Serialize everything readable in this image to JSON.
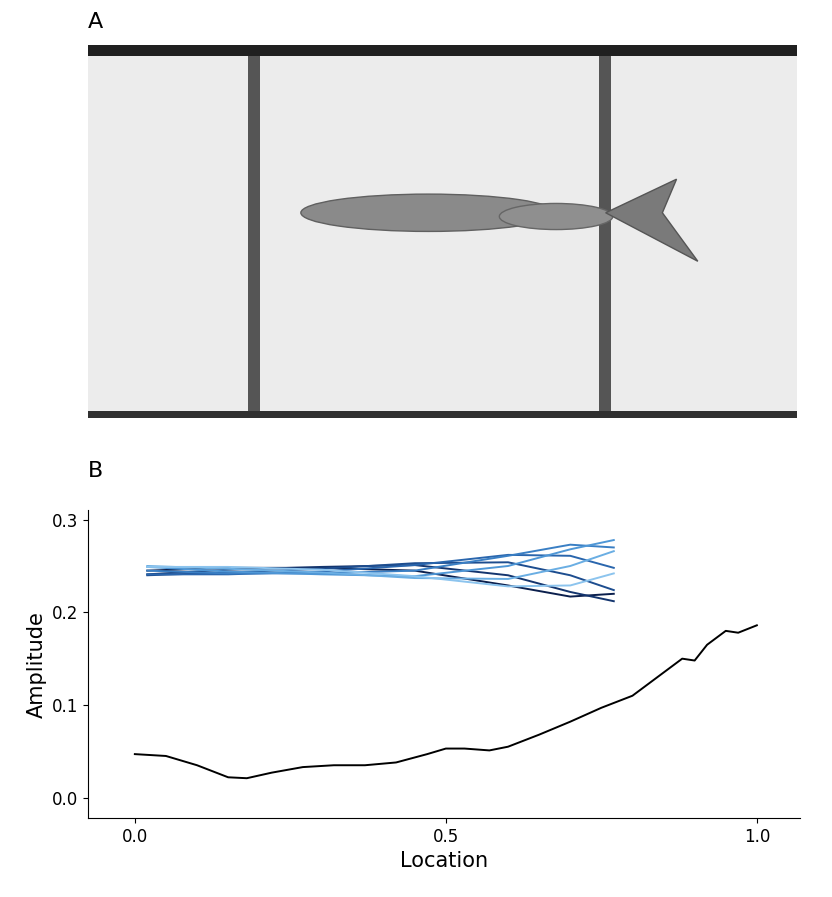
{
  "image": {
    "label": "A"
  },
  "chart_data": {
    "type": "line",
    "title": "B",
    "x_label": "Location",
    "y_label": "Amplitude",
    "xlim": [
      -0.075,
      1.07
    ],
    "ylim": [
      -0.022,
      0.31
    ],
    "xticks": [
      0.0,
      0.5,
      1.0
    ],
    "yticks": [
      0.0,
      0.1,
      0.2,
      0.3
    ],
    "grid": false,
    "series": [
      {
        "color": "#000000",
        "x": [
          0.0,
          0.05,
          0.1,
          0.15,
          0.18,
          0.22,
          0.27,
          0.32,
          0.37,
          0.42,
          0.47,
          0.5,
          0.53,
          0.57,
          0.6,
          0.65,
          0.7,
          0.75,
          0.8,
          0.85,
          0.88,
          0.9,
          0.92,
          0.95,
          0.97,
          1.0
        ],
        "values": [
          0.047,
          0.045,
          0.035,
          0.022,
          0.021,
          0.027,
          0.033,
          0.035,
          0.035,
          0.038,
          0.047,
          0.053,
          0.053,
          0.051,
          0.055,
          0.068,
          0.082,
          0.097,
          0.11,
          0.135,
          0.15,
          0.148,
          0.165,
          0.18,
          0.178,
          0.186
        ]
      },
      {
        "color": "#0b1f4d",
        "x": [
          0.02,
          0.15,
          0.3,
          0.45,
          0.6,
          0.7,
          0.77
        ],
        "values": [
          0.245,
          0.248,
          0.248,
          0.245,
          0.229,
          0.217,
          0.22
        ]
      },
      {
        "color": "#14356e",
        "x": [
          0.02,
          0.15,
          0.3,
          0.45,
          0.6,
          0.7,
          0.77
        ],
        "values": [
          0.241,
          0.246,
          0.249,
          0.251,
          0.24,
          0.222,
          0.212
        ]
      },
      {
        "color": "#1d4d8f",
        "x": [
          0.02,
          0.15,
          0.3,
          0.45,
          0.6,
          0.7,
          0.77
        ],
        "values": [
          0.24,
          0.243,
          0.247,
          0.253,
          0.254,
          0.24,
          0.224
        ]
      },
      {
        "color": "#2a66ad",
        "x": [
          0.02,
          0.15,
          0.3,
          0.45,
          0.6,
          0.7,
          0.77
        ],
        "values": [
          0.241,
          0.241,
          0.244,
          0.251,
          0.262,
          0.261,
          0.248
        ]
      },
      {
        "color": "#3a7fc4",
        "x": [
          0.02,
          0.15,
          0.3,
          0.45,
          0.6,
          0.7,
          0.77
        ],
        "values": [
          0.245,
          0.242,
          0.242,
          0.245,
          0.261,
          0.273,
          0.27
        ]
      },
      {
        "color": "#4f97d6",
        "x": [
          0.02,
          0.15,
          0.3,
          0.45,
          0.6,
          0.7,
          0.77
        ],
        "values": [
          0.249,
          0.244,
          0.241,
          0.239,
          0.25,
          0.268,
          0.278
        ]
      },
      {
        "color": "#6aaee3",
        "x": [
          0.02,
          0.15,
          0.3,
          0.45,
          0.6,
          0.7,
          0.77
        ],
        "values": [
          0.25,
          0.247,
          0.243,
          0.237,
          0.236,
          0.25,
          0.266
        ]
      },
      {
        "color": "#8cc4ee",
        "x": [
          0.02,
          0.15,
          0.3,
          0.45,
          0.6,
          0.7,
          0.77
        ],
        "values": [
          0.249,
          0.249,
          0.246,
          0.239,
          0.228,
          0.229,
          0.242
        ]
      }
    ]
  }
}
